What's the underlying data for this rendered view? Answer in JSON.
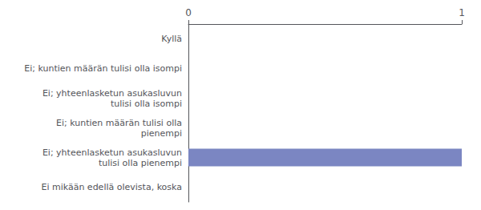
{
  "chart_data": {
    "type": "bar",
    "orientation": "horizontal",
    "categories": [
      "Ei mikään edellä olevista, koska",
      "Ei; yhteenlasketun asukasluvun\ntulisi olla pienempi",
      "Ei; kuntien määrän tulisi olla\npienempi",
      "Ei; yhteenlasketun asukasluvun\ntulisi olla isompi",
      "Ei; kuntien määrän tulisi olla isompi",
      "Kyllä"
    ],
    "values": [
      0,
      1,
      0,
      0,
      0,
      0
    ],
    "color": "#7b86c2",
    "xlim": [
      0,
      1
    ],
    "xticks": [
      0,
      1
    ],
    "grid": false
  }
}
